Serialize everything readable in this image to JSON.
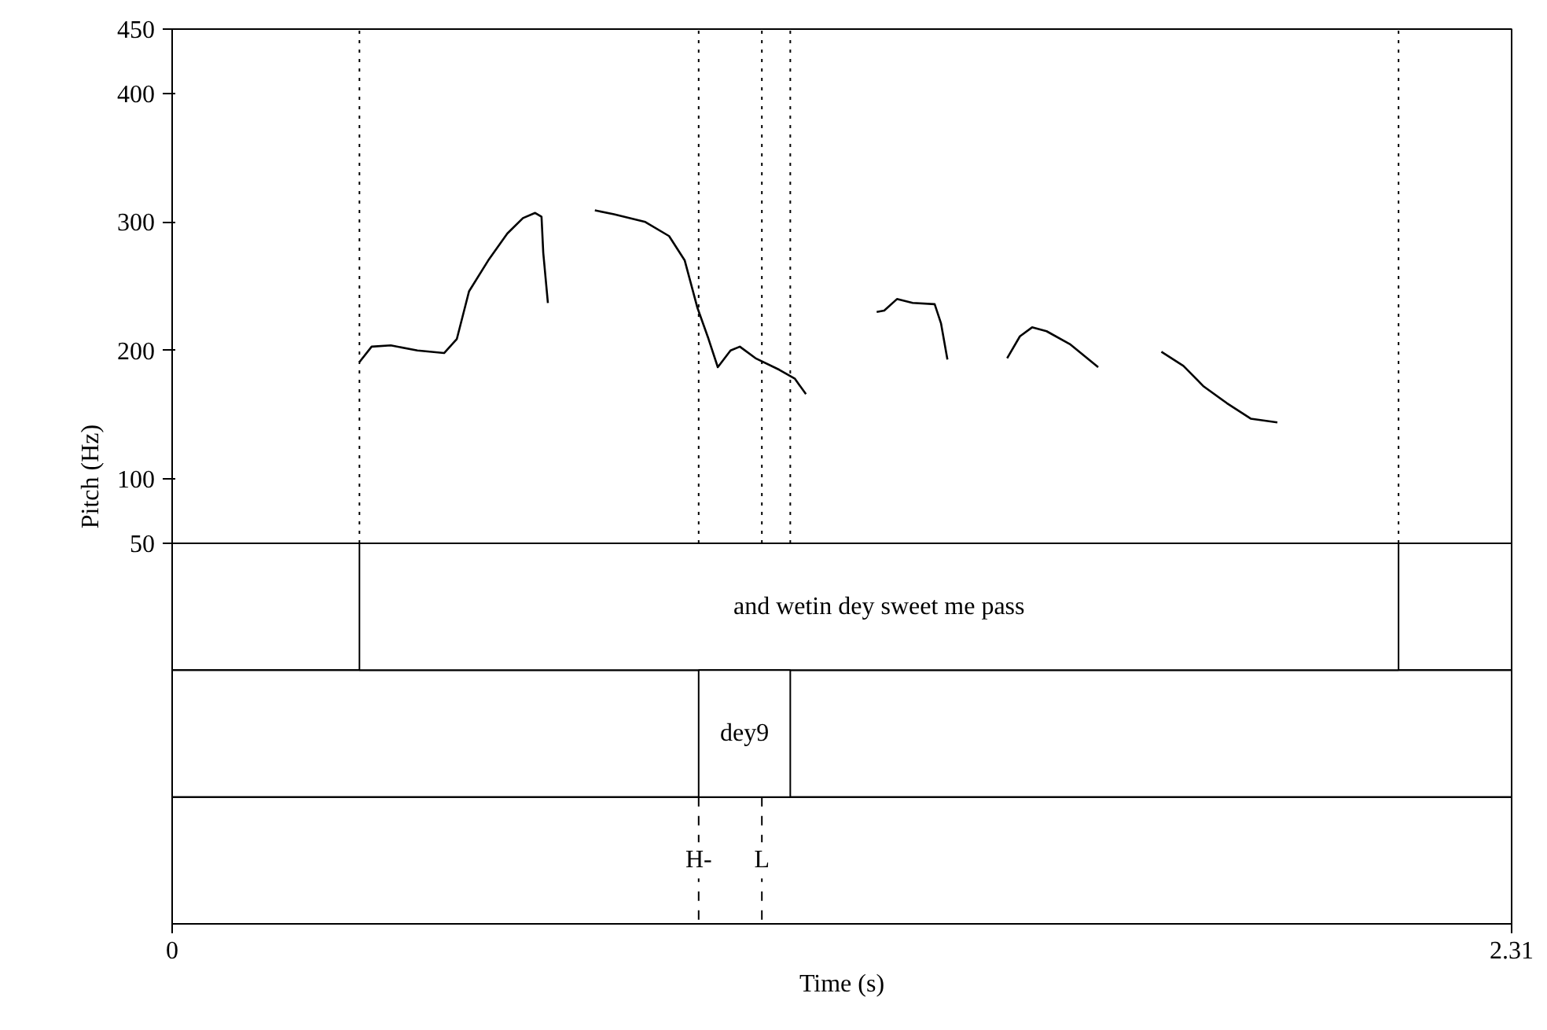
{
  "chart_data": {
    "type": "line",
    "xlabel": "Time (s)",
    "ylabel": "Pitch (Hz)",
    "xlim": [
      0,
      2.31
    ],
    "xticks": [
      0,
      2.31
    ],
    "ylim": [
      -246,
      450
    ],
    "yticks": [
      50,
      100,
      200,
      300,
      400,
      450
    ],
    "grid": false,
    "marker": "none",
    "line_style": "solid",
    "x": [
      0.323,
      0.344,
      0.377,
      0.423,
      0.469,
      0.491,
      0.512,
      0.545,
      0.578,
      0.605,
      0.626,
      0.637,
      0.64,
      0.648,
      0.69,
      0.729,
      0.762,
      0.816,
      0.857,
      0.884,
      0.906,
      0.925,
      0.941,
      0.963,
      0.979,
      1.006,
      1.047,
      1.074,
      1.093,
      1.15,
      1.215,
      1.228,
      1.25,
      1.277,
      1.315,
      1.326,
      1.337,
      1.39,
      1.44,
      1.462,
      1.483,
      1.508,
      1.548,
      1.597,
      1.65,
      1.706,
      1.744,
      1.779,
      1.819,
      1.86,
      1.906
    ],
    "series": [
      {
        "color": "#000000",
        "values": [
          191,
          203,
          204,
          200,
          198,
          209,
          246,
          270,
          291,
          303,
          307,
          304,
          276,
          237,
          null,
          309,
          306,
          300,
          289,
          270,
          233,
          209,
          187,
          200,
          203,
          194,
          185,
          178,
          166,
          null,
          230,
          231,
          240,
          237,
          236,
          221,
          193,
          null,
          194,
          211,
          218,
          215,
          205,
          187,
          null,
          199,
          188,
          172,
          159,
          147,
          144
        ]
      }
    ],
    "bands": [
      {
        "axis": "x",
        "from": 0.323,
        "to": 2.115,
        "label": "and wetin dey sweet me pass",
        "color": "#ffffff"
      },
      {
        "axis": "x",
        "from": 0.908,
        "to": 1.066,
        "label": "dey9",
        "color": "#ffffff"
      }
    ],
    "ref_lines": [
      {
        "axis": "x",
        "value": 0.323,
        "line_style": "dotted"
      },
      {
        "axis": "x",
        "value": 0.908,
        "label": "H-",
        "line_style": "dotted"
      },
      {
        "axis": "x",
        "value": 1.017,
        "label": "L",
        "line_style": "dotted"
      },
      {
        "axis": "x",
        "value": 1.066,
        "line_style": "dotted"
      },
      {
        "axis": "x",
        "value": 2.115,
        "line_style": "dotted"
      }
    ]
  }
}
